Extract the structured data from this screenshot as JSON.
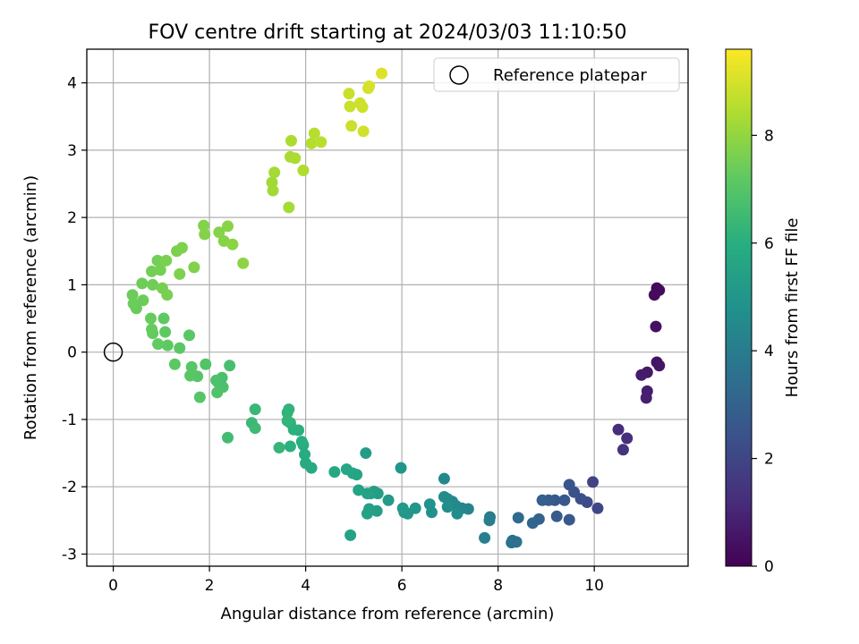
{
  "chart_data": {
    "type": "scatter",
    "title": "FOV centre drift starting at 2024/03/03 11:10:50",
    "xlabel": "Angular distance from reference (arcmin)",
    "ylabel": "Rotation from reference (arcmin)",
    "xlim": [
      -0.55,
      11.95
    ],
    "ylim": [
      -3.18,
      4.5
    ],
    "xticks": [
      0,
      2,
      4,
      6,
      8,
      10
    ],
    "yticks": [
      -3,
      -2,
      -1,
      0,
      1,
      2,
      3,
      4
    ],
    "grid": true,
    "legend": {
      "placement": "top-right",
      "label": "Reference platepar"
    },
    "reference": {
      "x": 0,
      "y": 0
    },
    "colorbar": {
      "label": "Hours from first FF file",
      "min": 0,
      "max": 9.6,
      "ticks": [
        0,
        2,
        4,
        6,
        8
      ],
      "colormap": "viridis"
    },
    "points": [
      {
        "x": 11.3,
        "y": 0.95,
        "h": 0.2
      },
      {
        "x": 11.35,
        "y": 0.92,
        "h": 0.25
      },
      {
        "x": 11.25,
        "y": 0.85,
        "h": 0.3
      },
      {
        "x": 11.28,
        "y": 0.38,
        "h": 0.4
      },
      {
        "x": 11.3,
        "y": -0.15,
        "h": 0.5
      },
      {
        "x": 11.35,
        "y": -0.2,
        "h": 0.55
      },
      {
        "x": 11.1,
        "y": -0.3,
        "h": 0.65
      },
      {
        "x": 10.98,
        "y": -0.34,
        "h": 0.7
      },
      {
        "x": 11.1,
        "y": -0.58,
        "h": 0.8
      },
      {
        "x": 11.08,
        "y": -0.68,
        "h": 0.85
      },
      {
        "x": 10.5,
        "y": -1.15,
        "h": 1.2
      },
      {
        "x": 10.68,
        "y": -1.28,
        "h": 1.3
      },
      {
        "x": 10.6,
        "y": -1.45,
        "h": 1.4
      },
      {
        "x": 9.97,
        "y": -1.93,
        "h": 1.9
      },
      {
        "x": 10.07,
        "y": -2.32,
        "h": 2.0
      },
      {
        "x": 9.85,
        "y": -2.23,
        "h": 2.2
      },
      {
        "x": 9.72,
        "y": -2.18,
        "h": 2.3
      },
      {
        "x": 9.58,
        "y": -2.08,
        "h": 2.4
      },
      {
        "x": 9.48,
        "y": -1.97,
        "h": 2.5
      },
      {
        "x": 9.38,
        "y": -2.2,
        "h": 2.6
      },
      {
        "x": 9.18,
        "y": -2.2,
        "h": 2.7
      },
      {
        "x": 9.05,
        "y": -2.2,
        "h": 2.8
      },
      {
        "x": 8.92,
        "y": -2.2,
        "h": 2.9
      },
      {
        "x": 9.22,
        "y": -2.44,
        "h": 2.75
      },
      {
        "x": 9.48,
        "y": -2.49,
        "h": 2.65
      },
      {
        "x": 8.85,
        "y": -2.48,
        "h": 3.0
      },
      {
        "x": 8.72,
        "y": -2.54,
        "h": 3.1
      },
      {
        "x": 8.42,
        "y": -2.46,
        "h": 3.3
      },
      {
        "x": 8.3,
        "y": -2.8,
        "h": 3.5
      },
      {
        "x": 8.38,
        "y": -2.82,
        "h": 3.55
      },
      {
        "x": 8.28,
        "y": -2.83,
        "h": 3.6
      },
      {
        "x": 7.83,
        "y": -2.45,
        "h": 4.0
      },
      {
        "x": 7.82,
        "y": -2.5,
        "h": 4.05
      },
      {
        "x": 7.72,
        "y": -2.76,
        "h": 4.1
      },
      {
        "x": 7.38,
        "y": -2.33,
        "h": 4.3
      },
      {
        "x": 7.25,
        "y": -2.32,
        "h": 4.4
      },
      {
        "x": 7.12,
        "y": -2.28,
        "h": 4.45
      },
      {
        "x": 7.05,
        "y": -2.22,
        "h": 4.5
      },
      {
        "x": 6.95,
        "y": -2.18,
        "h": 4.55
      },
      {
        "x": 6.88,
        "y": -2.15,
        "h": 4.6
      },
      {
        "x": 6.88,
        "y": -1.88,
        "h": 4.5
      },
      {
        "x": 7.15,
        "y": -2.4,
        "h": 4.65
      },
      {
        "x": 6.95,
        "y": -2.3,
        "h": 4.7
      },
      {
        "x": 6.62,
        "y": -2.38,
        "h": 4.8
      },
      {
        "x": 6.58,
        "y": -2.26,
        "h": 4.85
      },
      {
        "x": 6.28,
        "y": -2.32,
        "h": 5.0
      },
      {
        "x": 6.12,
        "y": -2.4,
        "h": 5.05
      },
      {
        "x": 6.05,
        "y": -2.38,
        "h": 5.1
      },
      {
        "x": 6.02,
        "y": -2.32,
        "h": 5.15
      },
      {
        "x": 5.98,
        "y": -1.72,
        "h": 5.0
      },
      {
        "x": 5.72,
        "y": -2.2,
        "h": 5.2
      },
      {
        "x": 5.5,
        "y": -2.1,
        "h": 5.3
      },
      {
        "x": 5.42,
        "y": -2.07,
        "h": 5.35
      },
      {
        "x": 5.35,
        "y": -2.1,
        "h": 5.4
      },
      {
        "x": 5.28,
        "y": -2.1,
        "h": 5.45
      },
      {
        "x": 5.48,
        "y": -2.36,
        "h": 5.35
      },
      {
        "x": 5.32,
        "y": -2.33,
        "h": 5.4
      },
      {
        "x": 5.28,
        "y": -2.4,
        "h": 5.5
      },
      {
        "x": 5.25,
        "y": -1.5,
        "h": 5.3
      },
      {
        "x": 5.1,
        "y": -2.05,
        "h": 5.55
      },
      {
        "x": 5.06,
        "y": -1.82,
        "h": 5.6
      },
      {
        "x": 4.98,
        "y": -1.8,
        "h": 5.62
      },
      {
        "x": 4.85,
        "y": -1.74,
        "h": 5.65
      },
      {
        "x": 4.93,
        "y": -2.72,
        "h": 5.5
      },
      {
        "x": 4.6,
        "y": -1.78,
        "h": 5.7
      },
      {
        "x": 4.12,
        "y": -1.72,
        "h": 5.8
      },
      {
        "x": 4.0,
        "y": -1.65,
        "h": 5.85
      },
      {
        "x": 3.98,
        "y": -1.52,
        "h": 5.9
      },
      {
        "x": 3.95,
        "y": -1.38,
        "h": 5.95
      },
      {
        "x": 3.92,
        "y": -1.33,
        "h": 6.0
      },
      {
        "x": 3.85,
        "y": -1.16,
        "h": 6.05
      },
      {
        "x": 3.75,
        "y": -1.15,
        "h": 6.1
      },
      {
        "x": 3.68,
        "y": -1.05,
        "h": 6.15
      },
      {
        "x": 3.62,
        "y": -0.9,
        "h": 6.2
      },
      {
        "x": 3.65,
        "y": -0.85,
        "h": 6.22
      },
      {
        "x": 3.62,
        "y": -1.02,
        "h": 6.25
      },
      {
        "x": 3.68,
        "y": -1.4,
        "h": 6.1
      },
      {
        "x": 3.45,
        "y": -1.42,
        "h": 6.3
      },
      {
        "x": 2.95,
        "y": -0.85,
        "h": 6.4
      },
      {
        "x": 2.88,
        "y": -1.05,
        "h": 6.45
      },
      {
        "x": 2.95,
        "y": -1.13,
        "h": 6.5
      },
      {
        "x": 2.38,
        "y": -1.27,
        "h": 6.6
      },
      {
        "x": 2.42,
        "y": -0.2,
        "h": 6.7
      },
      {
        "x": 2.26,
        "y": -0.38,
        "h": 6.75
      },
      {
        "x": 2.28,
        "y": -0.52,
        "h": 6.8
      },
      {
        "x": 2.18,
        "y": -0.45,
        "h": 6.82
      },
      {
        "x": 2.14,
        "y": -0.42,
        "h": 6.85
      },
      {
        "x": 2.16,
        "y": -0.6,
        "h": 6.9
      },
      {
        "x": 1.92,
        "y": -0.18,
        "h": 6.95
      },
      {
        "x": 1.8,
        "y": -0.67,
        "h": 7.0
      },
      {
        "x": 1.75,
        "y": -0.36,
        "h": 7.02
      },
      {
        "x": 1.63,
        "y": -0.22,
        "h": 7.05
      },
      {
        "x": 1.6,
        "y": -0.35,
        "h": 7.08
      },
      {
        "x": 1.58,
        "y": 0.25,
        "h": 7.1
      },
      {
        "x": 1.38,
        "y": 0.06,
        "h": 7.12
      },
      {
        "x": 1.28,
        "y": -0.18,
        "h": 7.15
      },
      {
        "x": 1.13,
        "y": 0.1,
        "h": 7.18
      },
      {
        "x": 1.08,
        "y": 0.3,
        "h": 7.2
      },
      {
        "x": 1.05,
        "y": 0.5,
        "h": 7.22
      },
      {
        "x": 0.93,
        "y": 0.12,
        "h": 7.25
      },
      {
        "x": 0.82,
        "y": 0.28,
        "h": 7.28
      },
      {
        "x": 0.8,
        "y": 0.34,
        "h": 7.3
      },
      {
        "x": 0.78,
        "y": 0.5,
        "h": 7.32
      },
      {
        "x": 0.48,
        "y": 0.65,
        "h": 7.35
      },
      {
        "x": 0.42,
        "y": 0.72,
        "h": 7.38
      },
      {
        "x": 0.4,
        "y": 0.85,
        "h": 7.4
      },
      {
        "x": 0.62,
        "y": 0.77,
        "h": 7.42
      },
      {
        "x": 0.6,
        "y": 1.02,
        "h": 7.45
      },
      {
        "x": 0.82,
        "y": 1.0,
        "h": 7.48
      },
      {
        "x": 0.8,
        "y": 1.2,
        "h": 7.5
      },
      {
        "x": 0.92,
        "y": 1.36,
        "h": 7.52
      },
      {
        "x": 0.98,
        "y": 1.22,
        "h": 7.55
      },
      {
        "x": 1.02,
        "y": 0.95,
        "h": 7.58
      },
      {
        "x": 1.12,
        "y": 0.85,
        "h": 7.6
      },
      {
        "x": 1.1,
        "y": 1.36,
        "h": 7.62
      },
      {
        "x": 1.32,
        "y": 1.5,
        "h": 7.65
      },
      {
        "x": 1.43,
        "y": 1.55,
        "h": 7.68
      },
      {
        "x": 1.38,
        "y": 1.16,
        "h": 7.7
      },
      {
        "x": 1.68,
        "y": 1.26,
        "h": 7.72
      },
      {
        "x": 1.88,
        "y": 1.88,
        "h": 7.75
      },
      {
        "x": 1.9,
        "y": 1.75,
        "h": 7.78
      },
      {
        "x": 2.2,
        "y": 1.78,
        "h": 7.8
      },
      {
        "x": 2.3,
        "y": 1.65,
        "h": 7.82
      },
      {
        "x": 2.38,
        "y": 1.87,
        "h": 7.85
      },
      {
        "x": 2.48,
        "y": 1.6,
        "h": 7.88
      },
      {
        "x": 2.7,
        "y": 1.32,
        "h": 7.9
      },
      {
        "x": 3.3,
        "y": 2.52,
        "h": 8.2
      },
      {
        "x": 3.32,
        "y": 2.4,
        "h": 8.22
      },
      {
        "x": 3.35,
        "y": 2.67,
        "h": 8.25
      },
      {
        "x": 3.65,
        "y": 2.15,
        "h": 8.3
      },
      {
        "x": 3.68,
        "y": 2.9,
        "h": 8.35
      },
      {
        "x": 3.78,
        "y": 2.88,
        "h": 8.38
      },
      {
        "x": 3.7,
        "y": 3.14,
        "h": 8.4
      },
      {
        "x": 3.95,
        "y": 2.7,
        "h": 8.45
      },
      {
        "x": 4.12,
        "y": 3.1,
        "h": 8.5
      },
      {
        "x": 4.18,
        "y": 3.25,
        "h": 8.55
      },
      {
        "x": 4.32,
        "y": 3.12,
        "h": 8.6
      },
      {
        "x": 4.9,
        "y": 3.84,
        "h": 8.8
      },
      {
        "x": 4.92,
        "y": 3.65,
        "h": 8.82
      },
      {
        "x": 4.95,
        "y": 3.36,
        "h": 8.85
      },
      {
        "x": 5.13,
        "y": 3.7,
        "h": 8.88
      },
      {
        "x": 5.18,
        "y": 3.64,
        "h": 8.9
      },
      {
        "x": 5.2,
        "y": 3.28,
        "h": 8.92
      },
      {
        "x": 5.3,
        "y": 3.92,
        "h": 8.95
      },
      {
        "x": 5.32,
        "y": 3.95,
        "h": 9.0
      },
      {
        "x": 5.58,
        "y": 4.14,
        "h": 9.1
      }
    ]
  }
}
